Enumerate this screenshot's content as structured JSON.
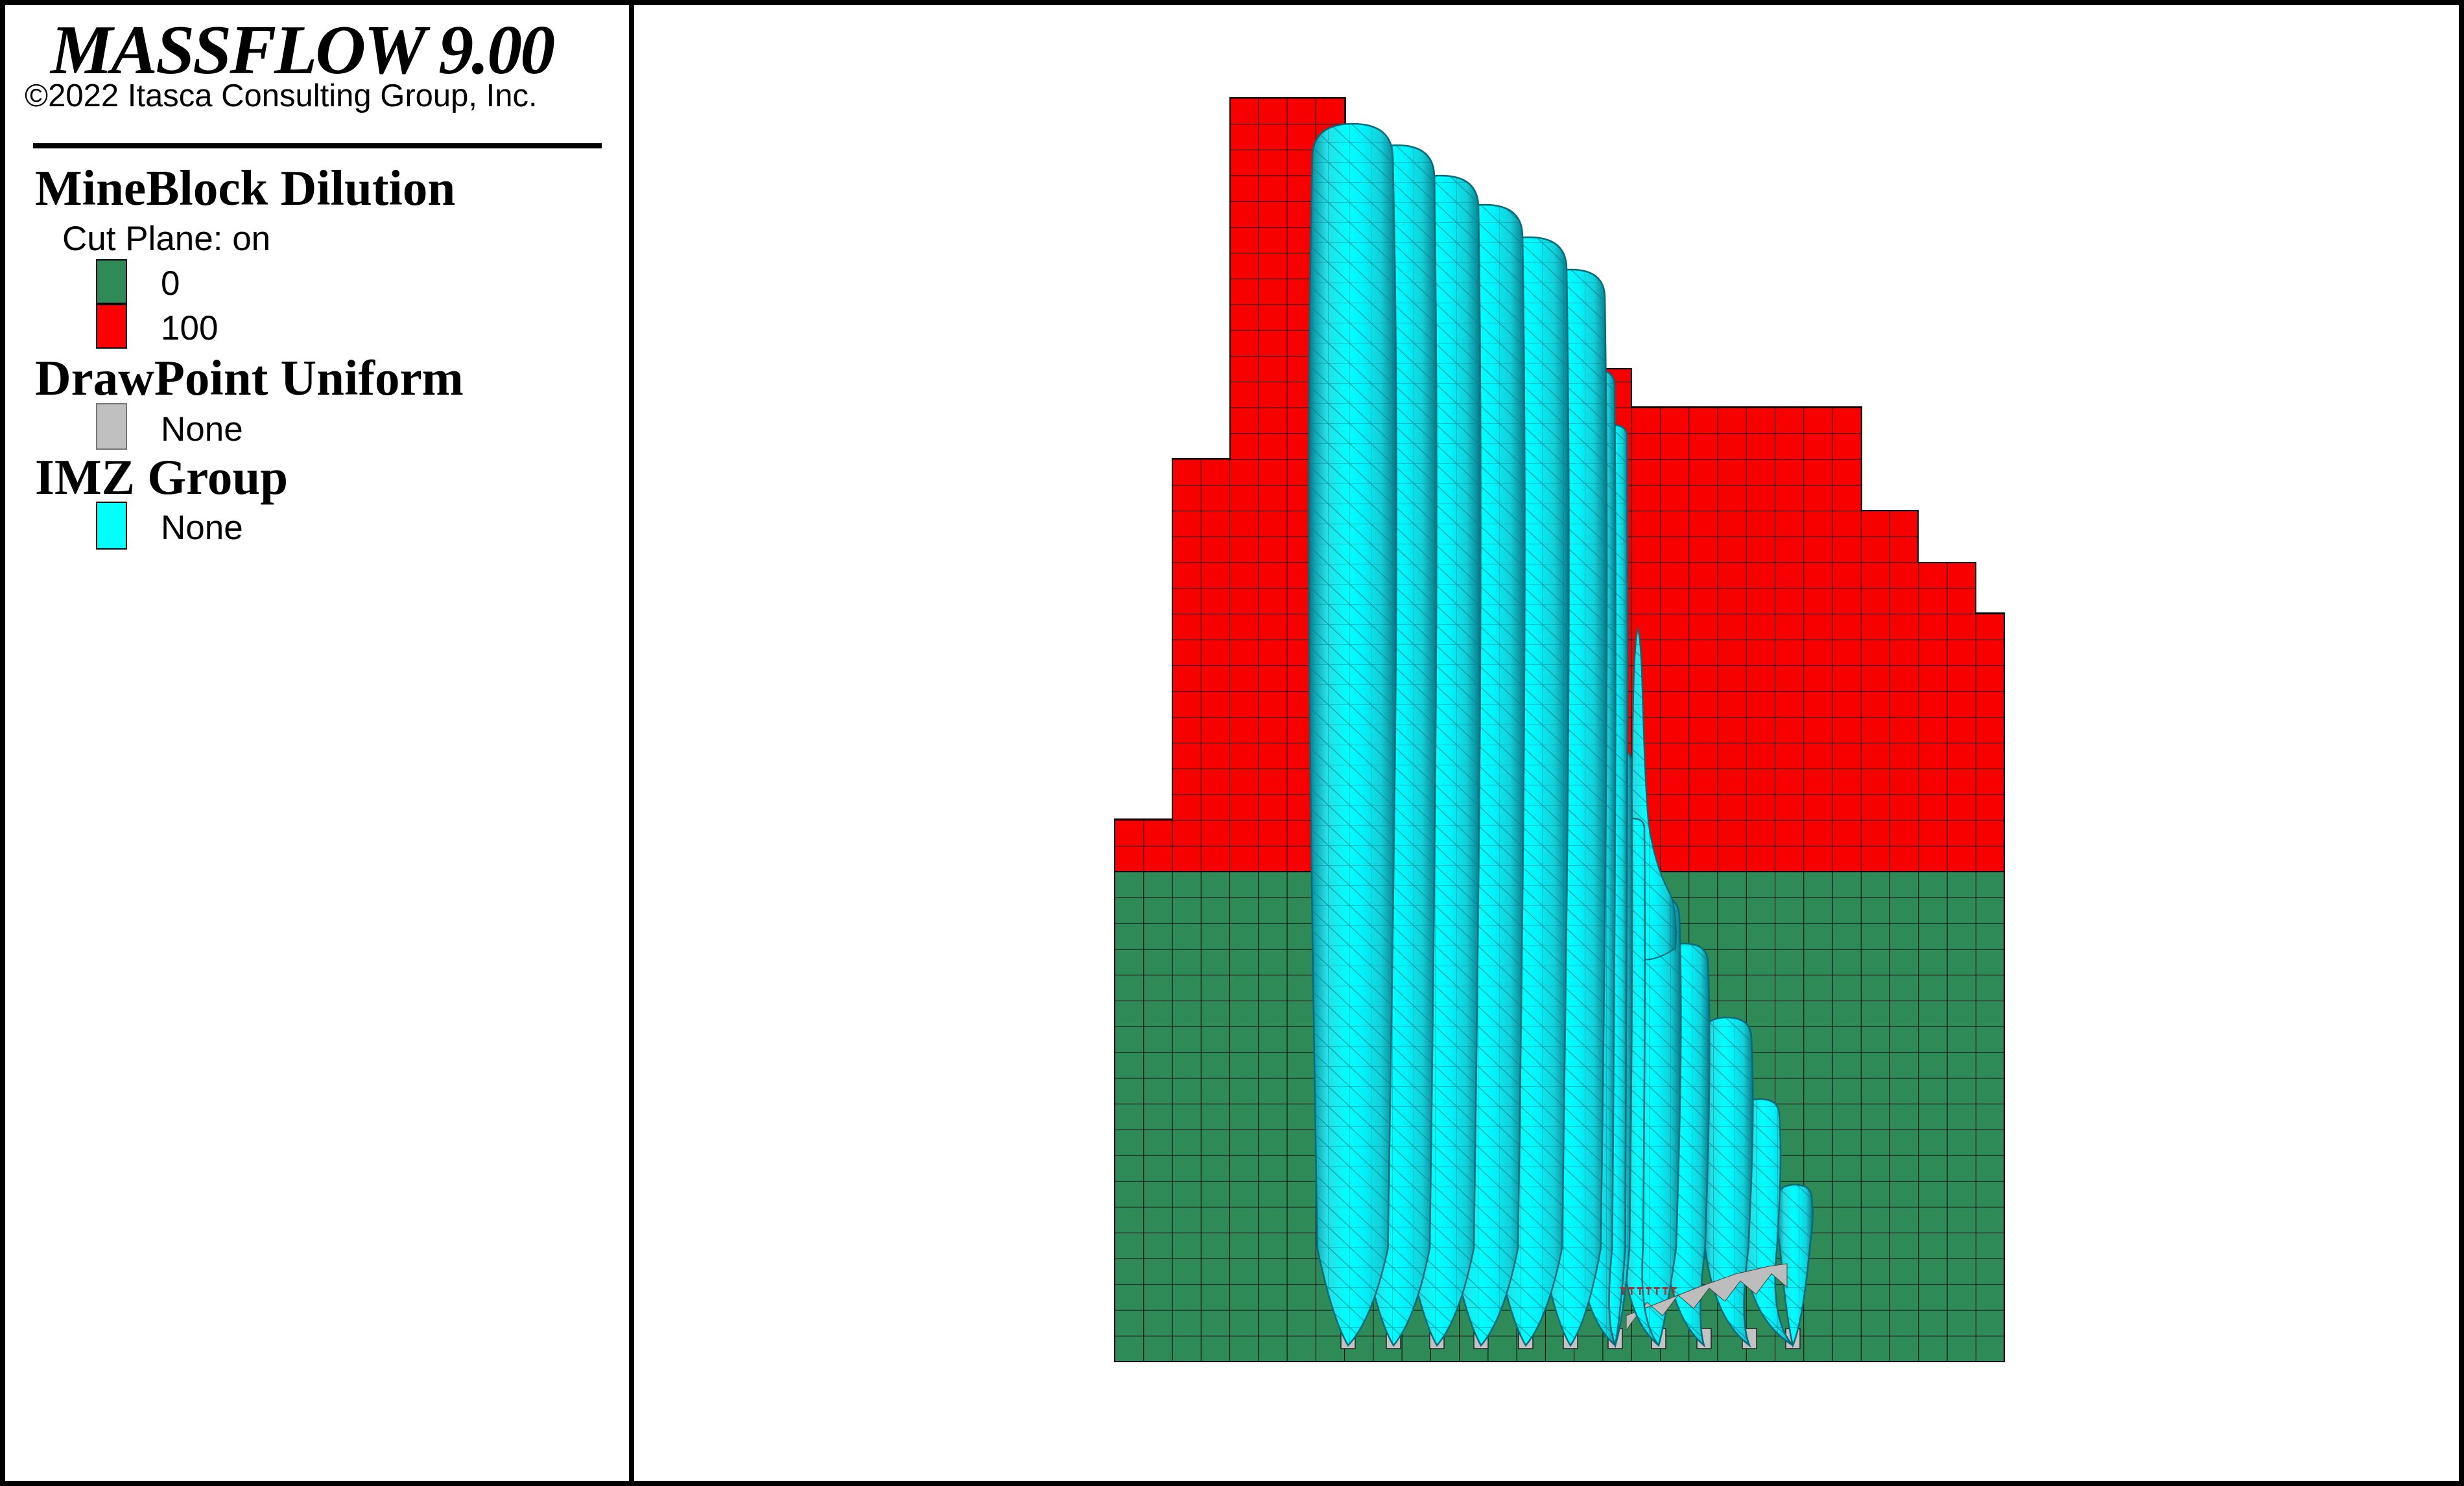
{
  "header": {
    "title": "MASSFLOW 9.00",
    "copyright": "©2022 Itasca Consulting Group, Inc."
  },
  "legend": {
    "mineblock": {
      "title": "MineBlock Dilution",
      "cutplane": "Cut Plane: on",
      "scale": [
        {
          "label": "0",
          "color": "#2E8B57"
        },
        {
          "label": "100",
          "color": "#FF0000"
        }
      ]
    },
    "drawpoint": {
      "title": "DrawPoint Uniform",
      "entries": [
        {
          "label": "None",
          "color": "#C0C0C0"
        }
      ]
    },
    "imz": {
      "title": "IMZ Group",
      "entries": [
        {
          "label": "None",
          "color": "#00FFFF"
        }
      ]
    }
  },
  "model": {
    "background": "#FFFFFF",
    "block_red": "#F90000",
    "block_green": "#2E8B57",
    "grid_line": "#000000",
    "imz_bright": "#00FFFF",
    "imz_shade": "#0B7E89",
    "imz_outline": "#056A79",
    "drawpoint_gray": "#C3C3C3",
    "band_gray": "#BDBDBD",
    "tick_red": "#B03030"
  }
}
